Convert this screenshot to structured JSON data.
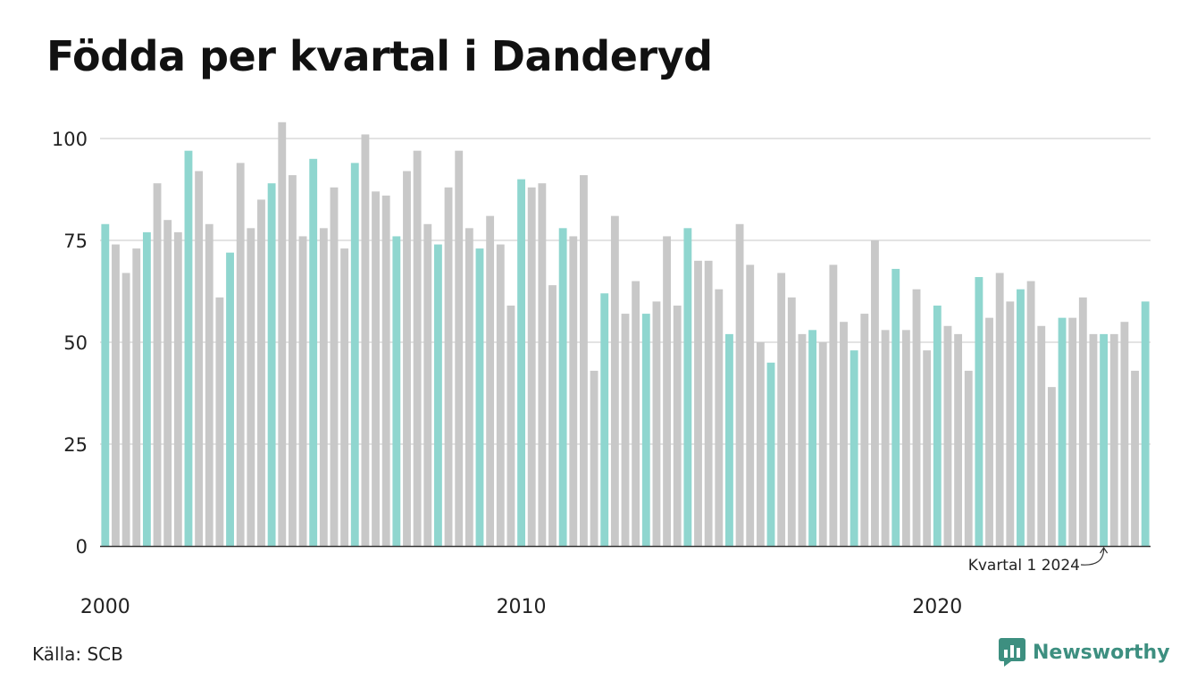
{
  "title": "Födda per kvartal i Danderyd",
  "source": "Källa: SCB",
  "logo": {
    "text": "Newsworthy",
    "icon": "newsworthy-chart-icon"
  },
  "chart_data": {
    "type": "bar",
    "title": "Födda per kvartal i Danderyd",
    "xlabel": "",
    "ylabel": "",
    "ylim": [
      0,
      105
    ],
    "yticks": [
      0,
      25,
      50,
      75,
      100
    ],
    "xtick_labels": [
      {
        "label": "2000",
        "index": 0
      },
      {
        "label": "2010",
        "index": 40
      },
      {
        "label": "2020",
        "index": 80
      }
    ],
    "grid": true,
    "colors": {
      "q1": "#8fd6cf",
      "other": "#c8c8c8",
      "highlight": "#1a9784",
      "grid": "#e3e3e3",
      "axis": "#333333"
    },
    "annotation": {
      "text": "Kvartal 1 2024",
      "target_index": 96
    },
    "highlight_index": 101,
    "start_year": 2000,
    "values": [
      79,
      74,
      67,
      73,
      77,
      89,
      80,
      77,
      97,
      92,
      79,
      61,
      72,
      94,
      78,
      85,
      89,
      104,
      91,
      76,
      95,
      78,
      88,
      73,
      94,
      101,
      87,
      86,
      76,
      92,
      97,
      79,
      74,
      88,
      97,
      78,
      73,
      81,
      74,
      59,
      90,
      88,
      89,
      64,
      78,
      76,
      91,
      43,
      62,
      81,
      57,
      65,
      57,
      60,
      76,
      59,
      78,
      70,
      70,
      63,
      52,
      79,
      69,
      50,
      45,
      67,
      61,
      52,
      53,
      50,
      69,
      55,
      48,
      57,
      75,
      53,
      68,
      53,
      63,
      48,
      59,
      54,
      52,
      43,
      66,
      56,
      67,
      60,
      63,
      65,
      54,
      39,
      56,
      56,
      61,
      52,
      52,
      52,
      55,
      43,
      60
    ]
  }
}
